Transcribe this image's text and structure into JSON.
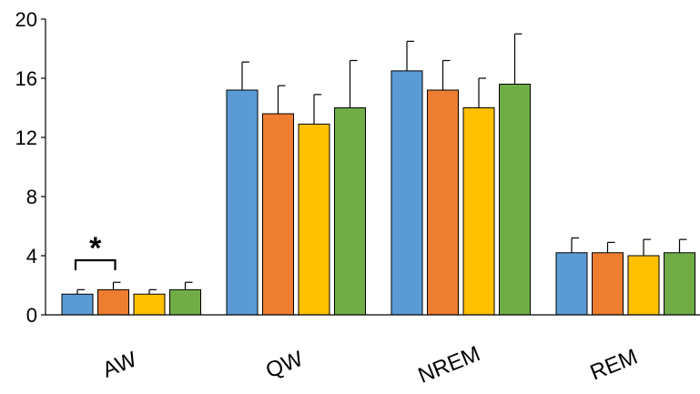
{
  "chart_data": {
    "type": "bar",
    "categories": [
      "AW",
      "QW",
      "NREM",
      "REM"
    ],
    "series": [
      {
        "color": "#5b9bd5",
        "values": [
          1.4,
          15.2,
          16.5,
          4.2
        ],
        "errors": [
          0.3,
          1.9,
          2.0,
          1.0
        ]
      },
      {
        "color": "#ed7d31",
        "values": [
          1.7,
          13.6,
          15.2,
          4.2
        ],
        "errors": [
          0.5,
          1.9,
          2.0,
          0.7
        ]
      },
      {
        "color": "#ffc000",
        "values": [
          1.4,
          12.9,
          14.0,
          4.0
        ],
        "errors": [
          0.3,
          2.0,
          2.0,
          1.1
        ]
      },
      {
        "color": "#70ad47",
        "values": [
          1.7,
          14.0,
          15.6,
          4.2
        ],
        "errors": [
          0.5,
          3.2,
          3.4,
          0.9
        ]
      }
    ],
    "yticks": [
      0,
      4,
      8,
      12,
      16,
      20
    ],
    "ylim": [
      0,
      20
    ],
    "title": "",
    "xlabel": "",
    "ylabel": "",
    "grid": false,
    "annotations": [
      {
        "text": "*",
        "category": "AW",
        "between_series": [
          0,
          1
        ]
      }
    ]
  }
}
